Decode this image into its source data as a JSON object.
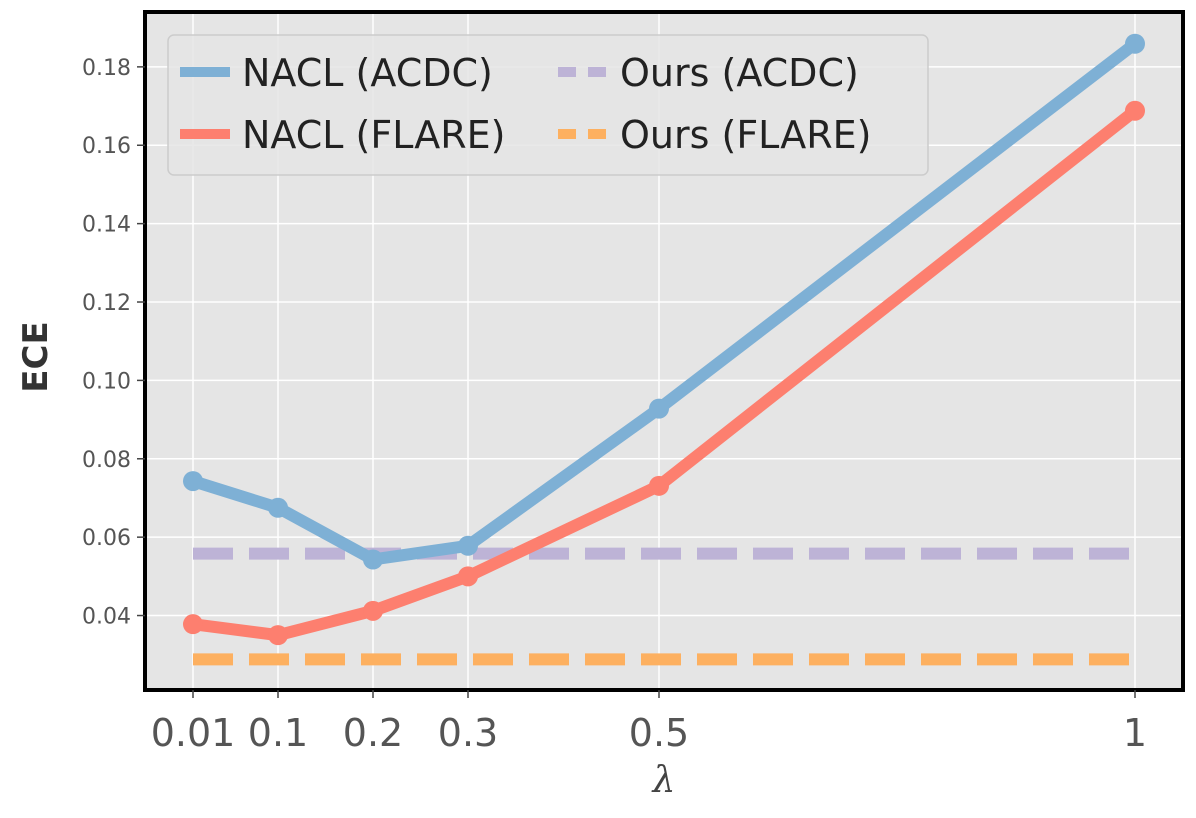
{
  "chart_data": {
    "type": "line",
    "xlabel": "λ",
    "ylabel": "ECE",
    "x": [
      0.01,
      0.1,
      0.2,
      0.3,
      0.5,
      1
    ],
    "x_tick_labels": [
      "0.01",
      "0.1",
      "0.2",
      "0.3",
      "0.5",
      "1"
    ],
    "y_ticks": [
      0.04,
      0.06,
      0.08,
      0.1,
      0.12,
      0.14,
      0.16,
      0.18
    ],
    "y_tick_labels": [
      "0.04",
      "0.06",
      "0.08",
      "0.10",
      "0.12",
      "0.14",
      "0.16",
      "0.18"
    ],
    "ylim": [
      0.021,
      0.194
    ],
    "grid": true,
    "legend_position": "top-left",
    "series": [
      {
        "name": "NACL (ACDC)",
        "style": "solid-markers",
        "color": "#7eb0d5",
        "values": [
          0.0743,
          0.0675,
          0.0543,
          0.0578,
          0.0928,
          0.1859
        ]
      },
      {
        "name": "NACL (FLARE)",
        "style": "solid-markers",
        "color": "#fd7f6f",
        "values": [
          0.0378,
          0.035,
          0.0412,
          0.05,
          0.0731,
          0.1688
        ]
      },
      {
        "name": "Ours (ACDC)",
        "style": "dashed",
        "color": "#bdb3d6",
        "values": [
          0.0558,
          0.0558,
          0.0558,
          0.0558,
          0.0558,
          0.0558
        ]
      },
      {
        "name": "Ours (FLARE)",
        "style": "dashed",
        "color": "#fdb060",
        "values": [
          0.0288,
          0.0288,
          0.0288,
          0.0288,
          0.0288,
          0.0288
        ]
      }
    ]
  }
}
